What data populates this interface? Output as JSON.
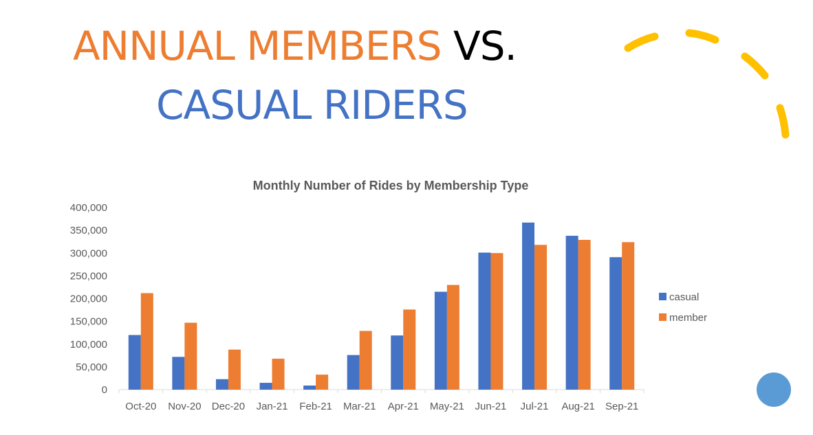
{
  "slide": {
    "title_part1": "ANNUAL MEMBERS",
    "title_part2": " VS.",
    "title_line2": "CASUAL RIDERS",
    "colors": {
      "orange": "#ED7D31",
      "blue": "#4472C4",
      "black": "#000000",
      "arc": "#FFC000",
      "circle": "#5B9BD5"
    }
  },
  "chart_data": {
    "type": "bar",
    "title": "Monthly Number of Rides by Membership Type",
    "categories": [
      "Oct-20",
      "Nov-20",
      "Dec-20",
      "Jan-21",
      "Feb-21",
      "Mar-21",
      "Apr-21",
      "May-21",
      "Jun-21",
      "Jul-21",
      "Aug-21",
      "Sep-21"
    ],
    "series": [
      {
        "name": "casual",
        "color": "#4472C4",
        "values": [
          120000,
          72000,
          23000,
          15000,
          9000,
          76000,
          119000,
          215000,
          301000,
          367000,
          338000,
          291000
        ]
      },
      {
        "name": "member",
        "color": "#ED7D31",
        "values": [
          212000,
          147000,
          88000,
          68000,
          33000,
          129000,
          176000,
          230000,
          300000,
          318000,
          329000,
          324000
        ]
      }
    ],
    "yticks": [
      "0",
      "50,000",
      "100,000",
      "150,000",
      "200,000",
      "250,000",
      "300,000",
      "350,000",
      "400,000"
    ],
    "ylim": [
      0,
      400000
    ],
    "grid": false,
    "legend": "right"
  }
}
